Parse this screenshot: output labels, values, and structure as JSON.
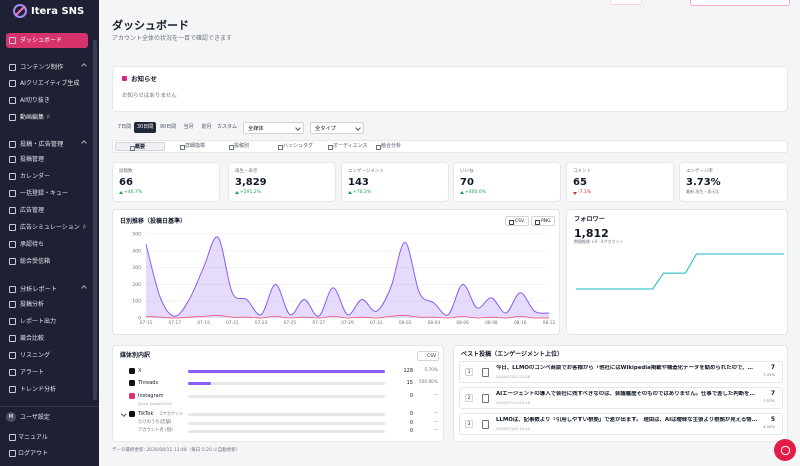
{
  "sidebar": {
    "logo": "Itera SNS",
    "active": "ダッシュボード",
    "sections": [
      {
        "title": "コンテンツ制作",
        "items": [
          {
            "label": "AIクリエイティブ生成"
          },
          {
            "label": "AI切り抜き"
          },
          {
            "label": "動画編集",
            "badge": "β"
          }
        ]
      },
      {
        "title": "投稿・広告管理",
        "items": [
          {
            "label": "投稿管理"
          },
          {
            "label": "カレンダー"
          },
          {
            "label": "一括登録・キュー"
          },
          {
            "label": "広告管理"
          },
          {
            "label": "広告シミュレーション",
            "badge": "β"
          },
          {
            "label": "承認待ち"
          },
          {
            "label": "総合受信箱"
          }
        ]
      },
      {
        "title": "分析レポート",
        "items": [
          {
            "label": "投稿分析"
          },
          {
            "label": "レポート出力"
          },
          {
            "label": "競合比較"
          },
          {
            "label": "リスニング"
          },
          {
            "label": "アラート"
          },
          {
            "label": "トレンド分析"
          }
        ]
      }
    ],
    "avatar": "M",
    "user": "ユーザ設定",
    "links": [
      "マニュアル",
      "ログアウト"
    ]
  },
  "header": {
    "title": "ダッシュボード",
    "subtitle": "アカウント全体の状況を一目で確認できます"
  },
  "notice": {
    "title": "お知らせ",
    "body": "お知らせはありません"
  },
  "filters": {
    "periods": [
      "7日間",
      "30日間",
      "90日間",
      "当月",
      "前月",
      "カスタム"
    ],
    "active_period": 1,
    "selects": [
      "全媒体",
      "全タイプ"
    ]
  },
  "tabs": {
    "items": [
      "概要",
      "詳細指標",
      "投稿別",
      "ハッシュタグ",
      "オーディエンス",
      "競合分析"
    ],
    "active": 0
  },
  "kpis": [
    {
      "label": "投稿数",
      "value": "66",
      "delta": "+46.7%",
      "direction": "up"
    },
    {
      "label": "再生・表示",
      "value": "3,829",
      "delta": "+591.2%",
      "direction": "up"
    },
    {
      "label": "エンゲージメント",
      "value": "143",
      "delta": "+70.2%",
      "direction": "up"
    },
    {
      "label": "いいね",
      "value": "70",
      "delta": "+400.0%",
      "direction": "up"
    },
    {
      "label": "コメント",
      "value": "65",
      "delta": "-7.1%",
      "direction": "down"
    },
    {
      "label": "エンゲージ率",
      "value": "3.73%",
      "note": "最新 再生・表示比"
    }
  ],
  "chart_data": {
    "type": "line",
    "title": "日別推移（投稿日基準）",
    "buttons": [
      "CSV",
      "PNG"
    ],
    "categories": [
      "07-15",
      null,
      "07-17",
      null,
      "07-19",
      null,
      "07-21",
      null,
      "07-23",
      null,
      "07-25",
      null,
      "07-27",
      null,
      "07-29",
      null,
      "07-31",
      null,
      "08-02",
      null,
      "08-04",
      null,
      "08-06",
      null,
      "08-08",
      null,
      "08-10",
      null,
      "08-12"
    ],
    "series": [
      {
        "color": "#8b5cf6",
        "fill": true,
        "values": [
          440,
          120,
          10,
          110,
          300,
          480,
          150,
          110,
          20,
          200,
          20,
          110,
          10,
          180,
          20,
          110,
          40,
          180,
          450,
          150,
          90,
          20,
          200,
          60,
          120,
          30,
          150,
          40,
          30
        ]
      },
      {
        "color": "#f43f5e",
        "fill": false,
        "values": [
          10,
          5,
          0,
          5,
          10,
          15,
          5,
          5,
          0,
          10,
          0,
          5,
          0,
          10,
          0,
          5,
          0,
          10,
          15,
          5,
          5,
          0,
          10,
          0,
          5,
          0,
          10,
          0,
          0
        ]
      }
    ],
    "ylim": [
      0,
      500
    ],
    "yticks": [
      0,
      100,
      200,
      300,
      400,
      500
    ],
    "grid": true
  },
  "followers": {
    "title": "フォロワー",
    "value": "1,812",
    "note": "期間推移 +0 · 4アカウント",
    "color": "#14b8c4",
    "values": [
      1790,
      1790,
      1790,
      1790,
      1790,
      1790,
      1790,
      1790,
      1800,
      1800,
      1800,
      1812,
      1812,
      1812,
      1812,
      1812,
      1812,
      1812,
      1812,
      1812
    ]
  },
  "media": {
    "title": "媒体別内訳",
    "button": "CSV",
    "rows": [
      {
        "name": "X",
        "icon": "x",
        "value": 128,
        "share": "5.70%"
      },
      {
        "name": "Threads",
        "icon": "threads",
        "value": 15,
        "share": "500.00%"
      },
      {
        "name": "Instagram",
        "icon": "instagram",
        "value": 0,
        "share": "—",
        "sub": "@sch_koubo1203"
      },
      {
        "name": "TikTok",
        "icon": "tiktok",
        "tag": "2アカウント",
        "value": 0,
        "share": "—"
      },
      {
        "name": "たけのうち(店舗)",
        "child": true,
        "value": 0,
        "share": "—"
      },
      {
        "name": "アカウント名 (個)",
        "child": true,
        "value": 0,
        "share": "—"
      }
    ]
  },
  "best": {
    "title": "ベスト投稿（エンゲージメント上位）",
    "posts": [
      {
        "rank": "1",
        "text": "今日、LLMOのコンペ商談でお客様から「他社にはWikipedia掲載や構造化データを勧められたので、ま…",
        "date": "2026/07/23 22:26",
        "value": "7",
        "rate": "7.45%"
      },
      {
        "rank": "2",
        "text": "AIエージェントの導入で会社に残すべきなのは、会議履歴そのものではありません。仕事で差した判断を…",
        "date": "2026/07/14 00:16",
        "value": "7",
        "rate": "7.07%"
      },
      {
        "rank": "3",
        "text": "LLMOは、記事数より「引用しやすい根拠」で差が出ます。 理由は、AIは曖昧な主張より根拠が見える情報…",
        "date": "2026/07/26 10:20",
        "value": "5",
        "rate": "4.55%"
      }
    ]
  },
  "footer": "データ最終更新: 2026/08/11 13:48（毎日 5:20 に自動更新）"
}
